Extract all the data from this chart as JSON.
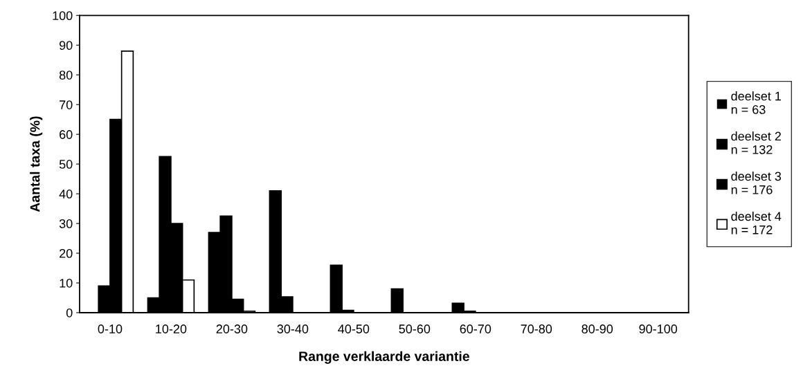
{
  "chart_data": {
    "type": "bar",
    "xlabel": "Range verklaarde variantie",
    "ylabel": "Aantal taxa (%)",
    "categories": [
      "0-10",
      "10-20",
      "20-30",
      "30-40",
      "40-50",
      "50-60",
      "60-70",
      "70-80",
      "80-90",
      "90-100"
    ],
    "series": [
      {
        "name": "deelset 1\nn = 63",
        "color": "#000000",
        "values": [
          0,
          5,
          27,
          41,
          16,
          8,
          3.2,
          0,
          0,
          0
        ]
      },
      {
        "name": "deelset 2\nn = 132",
        "color": "#000000",
        "values": [
          9,
          52.5,
          32.5,
          5.3,
          0.8,
          0,
          0.5,
          0,
          0,
          0
        ]
      },
      {
        "name": "deelset 3\nn = 176",
        "color": "#000000",
        "values": [
          65,
          30,
          4.5,
          0,
          0,
          0,
          0,
          0,
          0,
          0
        ]
      },
      {
        "name": "deelset 4\nn = 172",
        "color": "#ffffff",
        "values": [
          88,
          11,
          0.5,
          0,
          0,
          0,
          0,
          0,
          0,
          0
        ]
      }
    ],
    "ylim": [
      0,
      100
    ],
    "yticks": [
      0,
      10,
      20,
      30,
      40,
      50,
      60,
      70,
      80,
      90,
      100
    ],
    "grid": false,
    "legend": "right"
  }
}
